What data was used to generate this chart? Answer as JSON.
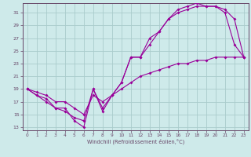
{
  "xlabel": "Windchill (Refroidissement éolien,°C)",
  "bg_color": "#ceeaea",
  "line_color": "#990099",
  "grid_color": "#aacccc",
  "axis_color": "#664466",
  "x_ticks": [
    0,
    1,
    2,
    3,
    4,
    5,
    6,
    7,
    8,
    9,
    10,
    11,
    12,
    13,
    14,
    15,
    16,
    17,
    18,
    19,
    20,
    21,
    22,
    23
  ],
  "y_ticks": [
    13,
    15,
    17,
    19,
    21,
    23,
    25,
    27,
    29,
    31
  ],
  "xlim": [
    -0.5,
    23.5
  ],
  "ylim": [
    12.5,
    32.5
  ],
  "series1_x": [
    0,
    1,
    2,
    3,
    4,
    5,
    6,
    7,
    8,
    9,
    10,
    11,
    12,
    13,
    14,
    15,
    16,
    17,
    18,
    19,
    20,
    21,
    22,
    23
  ],
  "series1_y": [
    19,
    18,
    17,
    16,
    16,
    14,
    13,
    19,
    16,
    18,
    20,
    24,
    24,
    27,
    28,
    30,
    31,
    31.5,
    32,
    32,
    32,
    31.5,
    30,
    24
  ],
  "series2_x": [
    0,
    1,
    2,
    3,
    4,
    5,
    6,
    7,
    8,
    9,
    10,
    11,
    12,
    13,
    14,
    15,
    16,
    17,
    18,
    19,
    20,
    21,
    22,
    23
  ],
  "series2_y": [
    19,
    18,
    17.5,
    16,
    15.5,
    14.5,
    14,
    19,
    15.5,
    18,
    20,
    24,
    24,
    26,
    28,
    30,
    31.5,
    32,
    32.5,
    32,
    32,
    31,
    26,
    24
  ],
  "series3_x": [
    0,
    1,
    2,
    3,
    4,
    5,
    6,
    7,
    8,
    9,
    10,
    11,
    12,
    13,
    14,
    15,
    16,
    17,
    18,
    19,
    20,
    21,
    22,
    23
  ],
  "series3_y": [
    19,
    18.5,
    18,
    17,
    17,
    16,
    15,
    18,
    17,
    18,
    19,
    20,
    21,
    21.5,
    22,
    22.5,
    23,
    23,
    23.5,
    23.5,
    24,
    24,
    24,
    24
  ]
}
